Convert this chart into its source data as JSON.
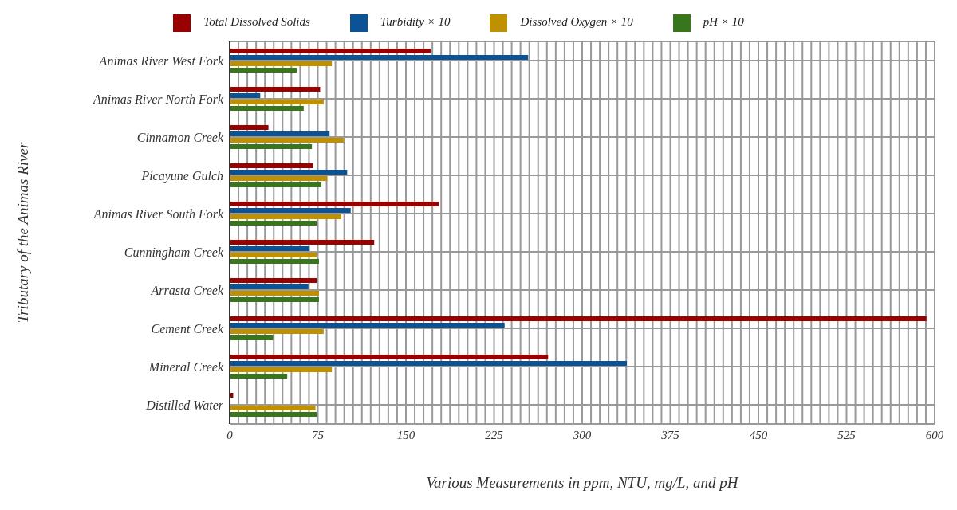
{
  "chart_data": {
    "type": "bar",
    "orientation": "horizontal",
    "xlabel": "Various Measurements in ppm, NTU, mg/L, and pH",
    "ylabel": "Tributary of the Animas River",
    "categories": [
      "Animas River West Fork",
      "Animas River North Fork",
      "Cinnamon Creek",
      "Picayune Gulch",
      "Animas River South Fork",
      "Cunningham Creek",
      "Arrasta Creek",
      "Cement Creek",
      "Mineral Creek",
      "Distilled Water"
    ],
    "series": [
      {
        "name": "Total Dissolved Solids",
        "color": "#990000",
        "values": [
          171,
          77,
          33,
          71,
          178,
          123,
          74,
          593,
          271,
          3
        ]
      },
      {
        "name": "Turbidity × 10",
        "color": "#0b5394",
        "values": [
          254,
          26,
          85,
          100,
          103,
          68,
          67,
          234,
          338,
          null
        ]
      },
      {
        "name": "Dissolved Oxygen × 10",
        "color": "#bf9000",
        "values": [
          87,
          80,
          97,
          83,
          95,
          74,
          76,
          80,
          87,
          73
        ]
      },
      {
        "name": "pH × 10",
        "color": "#38761d",
        "values": [
          57,
          63,
          70,
          78,
          74,
          76,
          76,
          37,
          49,
          74
        ]
      }
    ],
    "xlim": [
      0,
      600
    ],
    "xticks": [
      0,
      75,
      150,
      225,
      300,
      375,
      450,
      525,
      600
    ],
    "grid": true,
    "legend": "top"
  }
}
